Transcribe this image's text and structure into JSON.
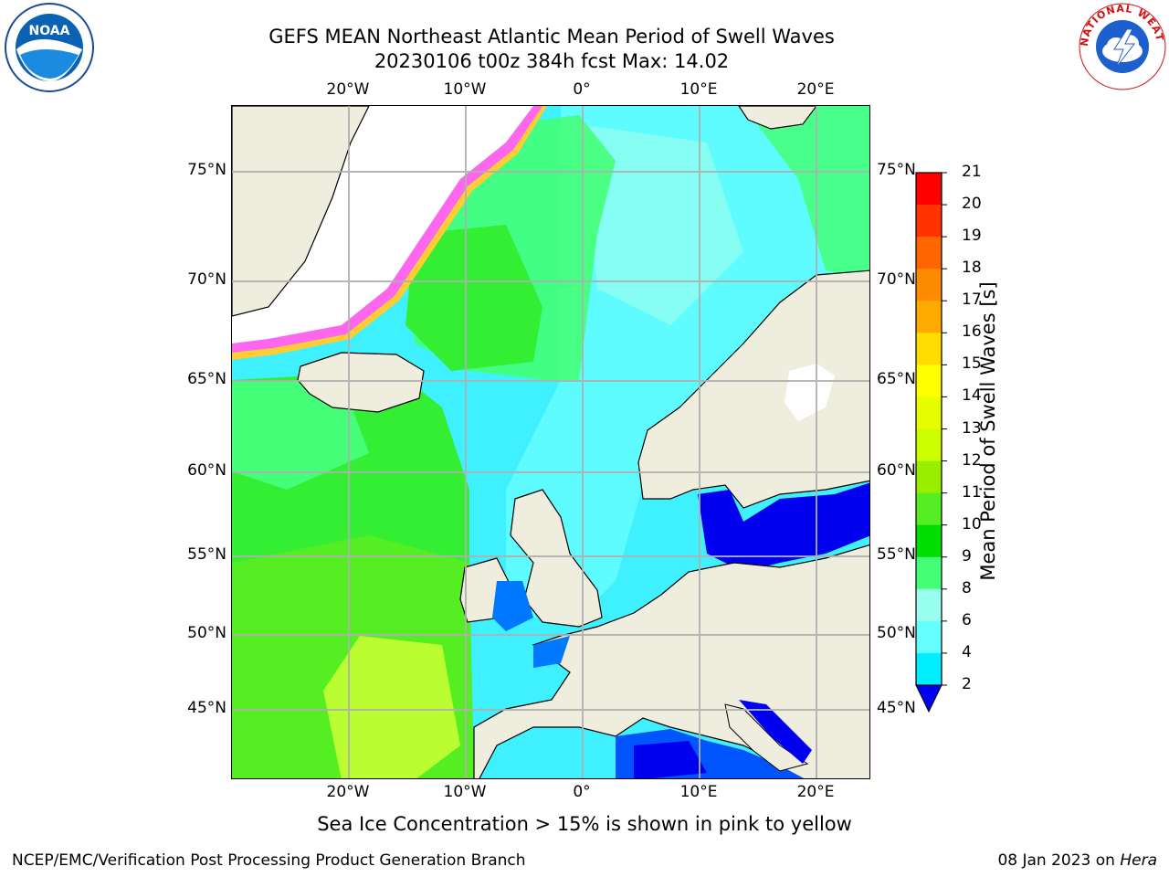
{
  "header": {
    "title_line1": "GEFS MEAN Northeast Atlantic Mean Period of Swell Waves",
    "title_line2": "20230106 t00z 384h fcst   Max: 14.02"
  },
  "map": {
    "lon_ticks": [
      "20°W",
      "10°W",
      "0°",
      "10°E",
      "20°E"
    ],
    "lat_ticks": [
      "75°N",
      "70°N",
      "65°N",
      "60°N",
      "55°N",
      "50°N",
      "45°N"
    ],
    "colors": {
      "land": "#efeddd",
      "ocean_main": "#3ff0ff",
      "green": "#33ee33"
    }
  },
  "colorbar": {
    "label": "Mean Period of Swell Waves [s]",
    "ticks": [
      "21",
      "20",
      "19",
      "18",
      "17",
      "16",
      "15",
      "14",
      "13",
      "12",
      "11",
      "10",
      "9",
      "8",
      "6",
      "4",
      "2"
    ],
    "colors": [
      "#ff0000",
      "#ff3300",
      "#ff6600",
      "#ff8c00",
      "#ffaa00",
      "#ffdd00",
      "#ffff00",
      "#e6ff00",
      "#ccff00",
      "#99ee00",
      "#55ee22",
      "#00dd00",
      "#44ff77",
      "#99ffee",
      "#66ffff",
      "#00eeff",
      "#0077ff",
      "#0000ee"
    ]
  },
  "caption": "Sea Ice Concentration > 15% is shown in pink to yellow",
  "footer": {
    "left": "NCEP/EMC/Verification Post Processing Product Generation Branch",
    "right_prefix": "08 Jan 2023 on ",
    "right_machine": "Hera"
  },
  "logos": {
    "noaa_text": "NOAA",
    "nws_text": "NATIONAL WEATHER SERVICE"
  }
}
